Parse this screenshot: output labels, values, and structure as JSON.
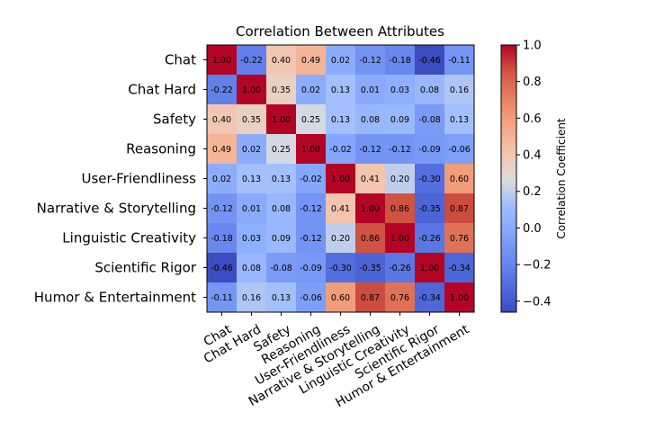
{
  "chart_data": {
    "type": "heatmap",
    "title": "Correlation Between Attributes",
    "categories": [
      "Chat",
      "Chat Hard",
      "Safety",
      "Reasoning",
      "User-Friendliness",
      "Narrative & Storytelling",
      "Linguistic Creativity",
      "Scientific Rigor",
      "Humor & Entertainment"
    ],
    "values": [
      [
        1.0,
        -0.22,
        0.4,
        0.49,
        0.02,
        -0.12,
        -0.18,
        -0.46,
        -0.11
      ],
      [
        -0.22,
        1.0,
        0.35,
        0.02,
        0.13,
        0.01,
        0.03,
        0.08,
        0.16
      ],
      [
        0.4,
        0.35,
        1.0,
        0.25,
        0.13,
        0.08,
        0.09,
        -0.08,
        0.13
      ],
      [
        0.49,
        0.02,
        0.25,
        1.0,
        -0.02,
        -0.12,
        -0.12,
        -0.09,
        -0.06
      ],
      [
        0.02,
        0.13,
        0.13,
        -0.02,
        1.0,
        0.41,
        0.2,
        -0.3,
        0.6
      ],
      [
        -0.12,
        0.01,
        0.08,
        -0.12,
        0.41,
        1.0,
        0.86,
        -0.35,
        0.87
      ],
      [
        -0.18,
        0.03,
        0.09,
        -0.12,
        0.2,
        0.86,
        1.0,
        -0.26,
        0.76
      ],
      [
        -0.46,
        0.08,
        -0.08,
        -0.09,
        -0.3,
        -0.35,
        -0.26,
        1.0,
        -0.34
      ],
      [
        -0.11,
        0.16,
        0.13,
        -0.06,
        0.6,
        0.87,
        0.76,
        -0.34,
        1.0
      ]
    ],
    "colormap": "coolwarm",
    "colorbar": {
      "label": "Correlation Coefficient",
      "range": [
        -0.46,
        1.0
      ],
      "ticks": [
        1.0,
        0.8,
        0.6,
        0.4,
        0.2,
        0.0,
        -0.2,
        -0.4
      ],
      "tick_labels": [
        "1.0",
        "0.8",
        "0.6",
        "0.4",
        "0.2",
        "0.0",
        "−0.2",
        "−0.4"
      ]
    },
    "xlabel": "",
    "ylabel": ""
  }
}
